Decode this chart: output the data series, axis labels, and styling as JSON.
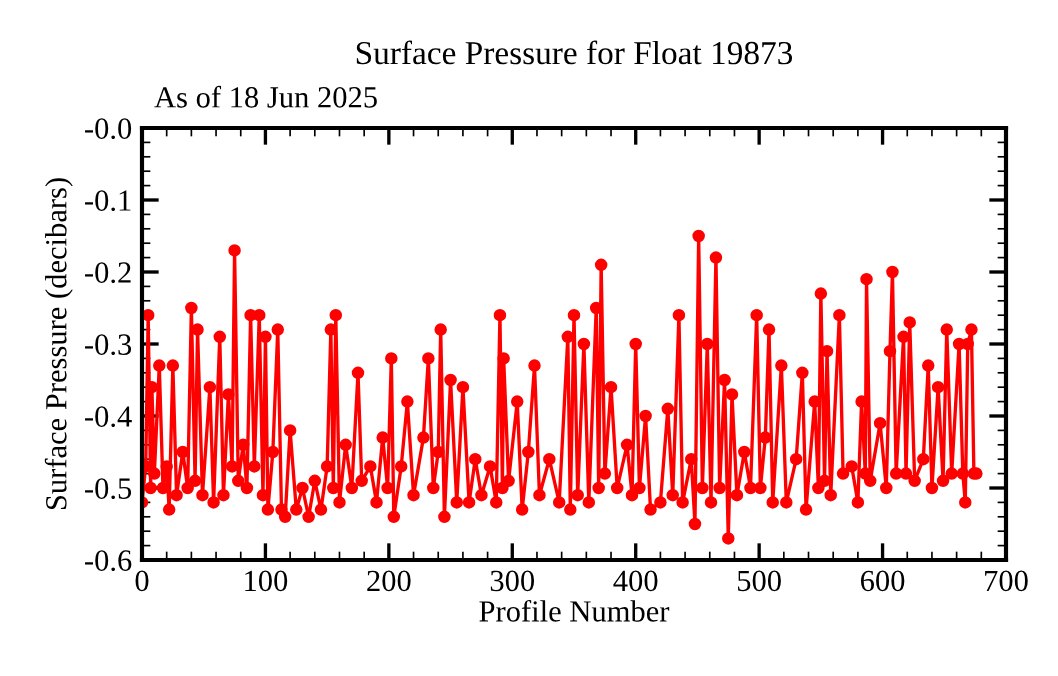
{
  "chart_data": {
    "type": "line",
    "title": "Surface Pressure for Float 19873",
    "xlabel": "Profile Number",
    "ylabel": "Surface Pressure (decibars)",
    "annotations": [
      "As of 18 Jun 2025"
    ],
    "xlim": [
      0,
      700
    ],
    "xticks": [
      0,
      100,
      200,
      300,
      400,
      500,
      600,
      700
    ],
    "ylim": [
      -0.6,
      0
    ],
    "yticks": [
      -0.6,
      -0.5,
      -0.4,
      -0.3,
      -0.2,
      -0.1,
      {
        "value": 0,
        "label": "-0.0"
      }
    ],
    "grid": false,
    "marker": "circle",
    "line_style": "solid",
    "series": [
      {
        "color": "#ff0000",
        "x": [
          0,
          3,
          5,
          7,
          8,
          10,
          14,
          17,
          20,
          22,
          25,
          28,
          33,
          37,
          40,
          43,
          45,
          49,
          55,
          58,
          63,
          66,
          70,
          73,
          75,
          78,
          82,
          85,
          88,
          91,
          95,
          98,
          100,
          102,
          106,
          110,
          113,
          116,
          120,
          125,
          130,
          135,
          140,
          145,
          150,
          153,
          155,
          157,
          160,
          165,
          170,
          175,
          178,
          185,
          190,
          195,
          199,
          202,
          204,
          210,
          215,
          220,
          228,
          232,
          236,
          240,
          242,
          245,
          250,
          255,
          260,
          265,
          270,
          275,
          282,
          287,
          290,
          292,
          293,
          297,
          304,
          308,
          313,
          318,
          322,
          330,
          338,
          345,
          347,
          350,
          353,
          358,
          362,
          368,
          370,
          372,
          375,
          380,
          385,
          393,
          397,
          400,
          403,
          408,
          412,
          420,
          426,
          430,
          435,
          438,
          445,
          448,
          451,
          454,
          458,
          461,
          465,
          468,
          472,
          475,
          478,
          482,
          488,
          493,
          498,
          501,
          505,
          508,
          511,
          518,
          522,
          530,
          535,
          538,
          545,
          548,
          550,
          553,
          555,
          558,
          565,
          568,
          575,
          580,
          583,
          586,
          587,
          590,
          598,
          603,
          606,
          608,
          611,
          617,
          619,
          622,
          626,
          633,
          637,
          640,
          645,
          649,
          652,
          656,
          662,
          665,
          667,
          669,
          672,
          674,
          676
        ],
        "values": [
          -0.52,
          -0.47,
          -0.26,
          -0.5,
          -0.36,
          -0.48,
          -0.33,
          -0.5,
          -0.47,
          -0.53,
          -0.33,
          -0.51,
          -0.45,
          -0.5,
          -0.25,
          -0.49,
          -0.28,
          -0.51,
          -0.36,
          -0.52,
          -0.29,
          -0.51,
          -0.37,
          -0.47,
          -0.17,
          -0.49,
          -0.44,
          -0.5,
          -0.26,
          -0.47,
          -0.26,
          -0.51,
          -0.29,
          -0.53,
          -0.45,
          -0.28,
          -0.53,
          -0.54,
          -0.42,
          -0.53,
          -0.5,
          -0.54,
          -0.49,
          -0.53,
          -0.47,
          -0.28,
          -0.5,
          -0.26,
          -0.52,
          -0.44,
          -0.5,
          -0.34,
          -0.49,
          -0.47,
          -0.52,
          -0.43,
          -0.5,
          -0.32,
          -0.54,
          -0.47,
          -0.38,
          -0.51,
          -0.43,
          -0.32,
          -0.5,
          -0.45,
          -0.28,
          -0.54,
          -0.35,
          -0.52,
          -0.36,
          -0.52,
          -0.46,
          -0.51,
          -0.47,
          -0.52,
          -0.26,
          -0.5,
          -0.32,
          -0.49,
          -0.38,
          -0.53,
          -0.45,
          -0.33,
          -0.51,
          -0.46,
          -0.52,
          -0.29,
          -0.53,
          -0.26,
          -0.51,
          -0.3,
          -0.52,
          -0.25,
          -0.5,
          -0.19,
          -0.48,
          -0.36,
          -0.5,
          -0.44,
          -0.51,
          -0.3,
          -0.5,
          -0.4,
          -0.53,
          -0.52,
          -0.39,
          -0.51,
          -0.26,
          -0.52,
          -0.46,
          -0.55,
          -0.15,
          -0.5,
          -0.3,
          -0.52,
          -0.18,
          -0.5,
          -0.35,
          -0.57,
          -0.37,
          -0.51,
          -0.45,
          -0.5,
          -0.26,
          -0.5,
          -0.43,
          -0.28,
          -0.52,
          -0.33,
          -0.52,
          -0.46,
          -0.34,
          -0.53,
          -0.38,
          -0.5,
          -0.23,
          -0.49,
          -0.31,
          -0.51,
          -0.26,
          -0.48,
          -0.47,
          -0.52,
          -0.38,
          -0.48,
          -0.21,
          -0.49,
          -0.41,
          -0.5,
          -0.31,
          -0.2,
          -0.48,
          -0.29,
          -0.48,
          -0.27,
          -0.49,
          -0.46,
          -0.33,
          -0.5,
          -0.36,
          -0.49,
          -0.28,
          -0.48,
          -0.3,
          -0.48,
          -0.52,
          -0.3,
          -0.28,
          -0.48,
          -0.48
        ]
      }
    ]
  }
}
